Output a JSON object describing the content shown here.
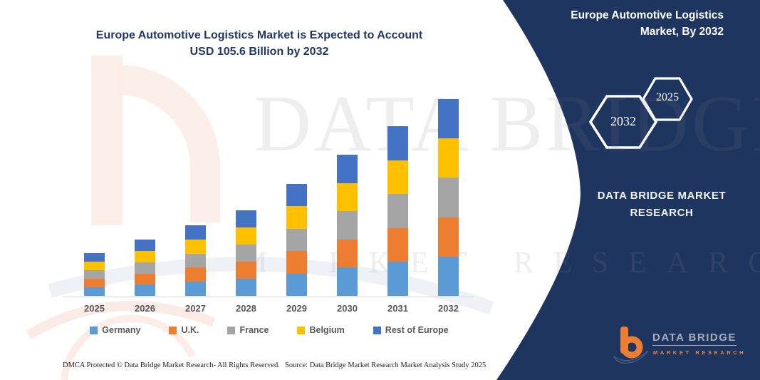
{
  "header": {
    "title_line1": "Europe Automotive Logistics Market is Expected to Account",
    "title_line2": "USD 105.6 Billion by 2032"
  },
  "chart_data": {
    "type": "bar",
    "stacked": true,
    "title": "Europe Automotive Logistics Market is Expected to Account USD 105.6 Billion by 2032",
    "categories": [
      "2025",
      "2026",
      "2027",
      "2028",
      "2029",
      "2030",
      "2031",
      "2032"
    ],
    "series": [
      {
        "name": "Germany",
        "color": "#5B9BD5",
        "values": [
          4.6,
          6.0,
          7.6,
          9.2,
          12.0,
          15.1,
          18.2,
          21.1
        ]
      },
      {
        "name": "U.K.",
        "color": "#ED7D31",
        "values": [
          4.6,
          6.0,
          7.6,
          9.2,
          12.0,
          15.1,
          18.2,
          21.1
        ]
      },
      {
        "name": "France",
        "color": "#A5A5A5",
        "values": [
          4.6,
          6.0,
          7.5,
          9.2,
          12.0,
          15.1,
          18.2,
          21.1
        ]
      },
      {
        "name": "Belgium",
        "color": "#FFC000",
        "values": [
          4.6,
          6.1,
          7.5,
          9.1,
          12.0,
          15.1,
          18.2,
          21.1
        ]
      },
      {
        "name": "Rest of Europe",
        "color": "#4472C4",
        "values": [
          4.6,
          6.1,
          7.6,
          9.2,
          12.0,
          15.2,
          18.2,
          21.2
        ]
      }
    ],
    "totals": [
      23.0,
      30.2,
      37.8,
      45.9,
      60.0,
      75.6,
      91.0,
      105.6
    ],
    "xlabel": "",
    "ylabel": "",
    "ylim": [
      0,
      112
    ],
    "grid": false,
    "legend_position": "bottom"
  },
  "panel": {
    "bg_color": "#1e3560",
    "title_line1": "Europe Automotive Logistics",
    "title_line2": "Market, By 2032",
    "hex_front_year": "2032",
    "hex_back_year": "2025",
    "org_line1": "DATA BRIDGE MARKET",
    "org_line2": "RESEARCH"
  },
  "logo": {
    "name": "DATA BRIDGE",
    "subtitle": "MARKET RESEARCH",
    "accent_color": "#ED7D31"
  },
  "watermark": {
    "big_text": "DATA BRIDGE",
    "row_text": "MARKET RESEARCH"
  },
  "footer": {
    "dmca": "DMCA Protected © Data Bridge Market Research-  All Rights Reserved.",
    "source": "Source: Data Bridge Market Research  Market Analysis Study 2025"
  }
}
